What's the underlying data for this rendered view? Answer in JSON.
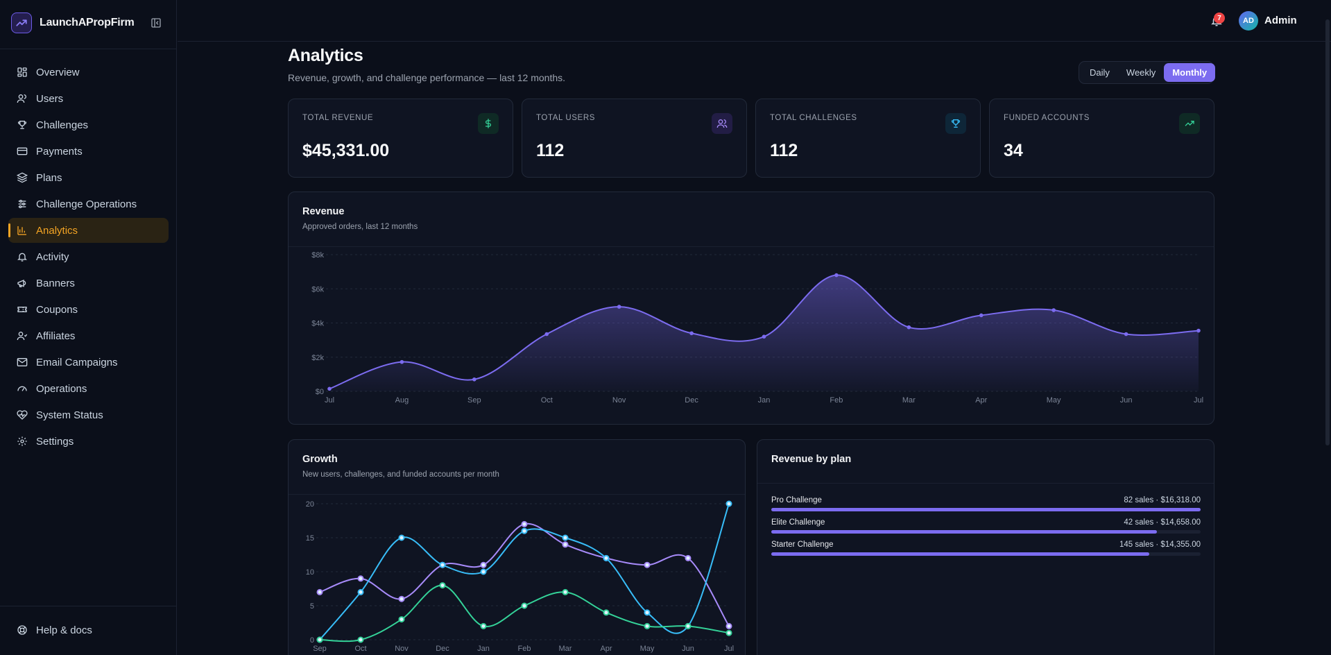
{
  "app": {
    "name": "LaunchAPropFirm"
  },
  "sidebar": {
    "items": [
      {
        "label": "Overview",
        "icon": "grid-icon"
      },
      {
        "label": "Users",
        "icon": "user-icon"
      },
      {
        "label": "Challenges",
        "icon": "trophy-icon"
      },
      {
        "label": "Payments",
        "icon": "credit-card-icon"
      },
      {
        "label": "Plans",
        "icon": "layers-icon"
      },
      {
        "label": "Challenge Operations",
        "icon": "sliders-icon"
      },
      {
        "label": "Analytics",
        "icon": "bar-chart-icon",
        "active": true
      },
      {
        "label": "Activity",
        "icon": "bell-icon"
      },
      {
        "label": "Banners",
        "icon": "megaphone-icon"
      },
      {
        "label": "Coupons",
        "icon": "ticket-icon"
      },
      {
        "label": "Affiliates",
        "icon": "users-icon"
      },
      {
        "label": "Email Campaigns",
        "icon": "mail-icon"
      },
      {
        "label": "Operations",
        "icon": "gauge-icon"
      },
      {
        "label": "System Status",
        "icon": "heart-pulse-icon"
      },
      {
        "label": "Settings",
        "icon": "gear-icon"
      }
    ],
    "help_label": "Help & docs"
  },
  "header": {
    "notification_count": "7",
    "avatar_initials": "AD",
    "user_name": "Admin"
  },
  "page": {
    "title": "Analytics",
    "subtitle": "Revenue, growth, and challenge performance — last 12 months.",
    "range_options": [
      "Daily",
      "Weekly",
      "Monthly"
    ],
    "range_selected": "Monthly"
  },
  "stats": [
    {
      "label": "TOTAL REVENUE",
      "value": "$45,331.00",
      "icon": "dollar-icon",
      "color": "#34d399"
    },
    {
      "label": "TOTAL USERS",
      "value": "112",
      "icon": "users-icon",
      "color": "#a78bfa"
    },
    {
      "label": "TOTAL CHALLENGES",
      "value": "112",
      "icon": "trophy-icon",
      "color": "#38bdf8"
    },
    {
      "label": "FUNDED ACCOUNTS",
      "value": "34",
      "icon": "trending-up-icon",
      "color": "#34d399"
    }
  ],
  "revenue_card": {
    "title": "Revenue",
    "subtitle": "Approved orders, last 12 months"
  },
  "growth_card": {
    "title": "Growth",
    "subtitle": "New users, challenges, and funded accounts per month"
  },
  "plan_card": {
    "title": "Revenue by plan",
    "plans": [
      {
        "name": "Pro Challenge",
        "stats": "82 sales · $16,318.00",
        "share": 1.0
      },
      {
        "name": "Elite Challenge",
        "stats": "42 sales · $14,658.00",
        "share": 0.898
      },
      {
        "name": "Starter Challenge",
        "stats": "145 sales · $14,355.00",
        "share": 0.88
      }
    ]
  },
  "chart_data": [
    {
      "type": "area",
      "title": "Revenue",
      "subtitle": "Approved orders, last 12 months",
      "categories": [
        "Jul",
        "Aug",
        "Sep",
        "Oct",
        "Nov",
        "Dec",
        "Jan",
        "Feb",
        "Mar",
        "Apr",
        "May",
        "Jun",
        "Jul"
      ],
      "values": [
        150,
        1720,
        700,
        3350,
        4950,
        3400,
        3200,
        6800,
        3750,
        4450,
        4750,
        3350,
        3550
      ],
      "ylim": [
        0,
        8000
      ],
      "yticks": [
        "$0",
        "$2k",
        "$4k",
        "$6k",
        "$8k"
      ],
      "color": "#7c6cf0",
      "grid": true
    },
    {
      "type": "line",
      "title": "Growth",
      "subtitle": "New users, challenges, and funded accounts per month",
      "categories": [
        "Sep",
        "Oct",
        "Nov",
        "Dec",
        "Jan",
        "Feb",
        "Mar",
        "Apr",
        "May",
        "Jun",
        "Jul"
      ],
      "ylim": [
        0,
        20
      ],
      "yticks": [
        "0",
        "5",
        "10",
        "15",
        "20"
      ],
      "series": [
        {
          "values": [
            7,
            9,
            6,
            11,
            11,
            17,
            14,
            12,
            11,
            12,
            2
          ],
          "color": "#a78bfa"
        },
        {
          "values": [
            0,
            7,
            15,
            11,
            10,
            16,
            15,
            12,
            4,
            2,
            20
          ],
          "color": "#38bdf8"
        },
        {
          "values": [
            0,
            0,
            3,
            8,
            2,
            5,
            7,
            4,
            2,
            2,
            1
          ],
          "color": "#34d399"
        }
      ],
      "grid": true
    }
  ]
}
